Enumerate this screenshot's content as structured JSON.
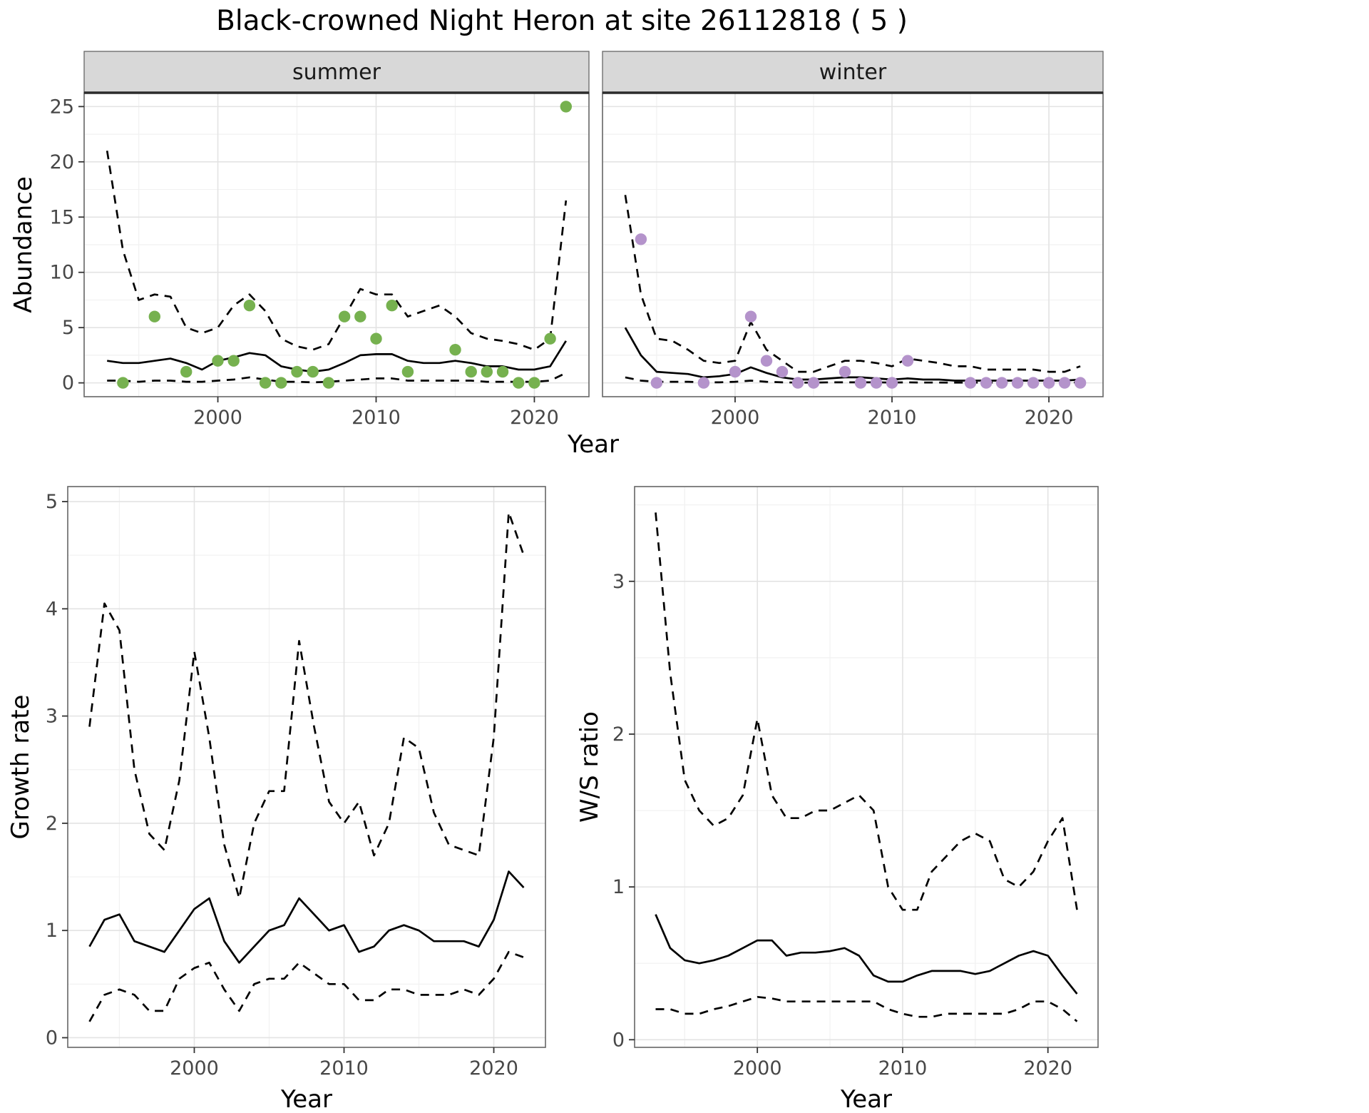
{
  "title": "Black-crowned Night Heron at site 26112818 ( 5 )",
  "colors": {
    "background": "#ffffff",
    "line": "#000000",
    "summer_point": "#76b14f",
    "winter_point": "#b493cb",
    "strip_bg": "#d8d8d8",
    "strip_border": "#2b2b2b",
    "panel_border": "#666666",
    "grid_major": "#e3e3e3",
    "grid_minor": "#f1f1f1",
    "axis_text": "#474747",
    "title_text": "#000000"
  },
  "chart_data": [
    {
      "id": "abundance",
      "type": "line",
      "title": "",
      "xlabel": "Year",
      "ylabel": "Abundance",
      "xlim": [
        1991.55,
        2023.45
      ],
      "ylim": [
        -1.25,
        26.25
      ],
      "x_ticks": [
        2000,
        2010,
        2020
      ],
      "x_tick_labels": [
        "2000",
        "2010",
        "2020"
      ],
      "x_minor": [
        1995,
        2005,
        2015
      ],
      "y_ticks": [
        0,
        5,
        10,
        15,
        20,
        25
      ],
      "y_tick_labels": [
        "0",
        "5",
        "10",
        "15",
        "20",
        "25"
      ],
      "y_minor": [
        2.5,
        7.5,
        12.5,
        17.5,
        22.5
      ],
      "fit_years": [
        1993,
        1994,
        1995,
        1996,
        1997,
        1998,
        1999,
        2000,
        2001,
        2002,
        2003,
        2004,
        2005,
        2006,
        2007,
        2008,
        2009,
        2010,
        2011,
        2012,
        2013,
        2014,
        2015,
        2016,
        2017,
        2018,
        2019,
        2020,
        2021,
        2022
      ],
      "facets": [
        {
          "label": "summer",
          "point_color": "summer_point",
          "median": [
            2.0,
            1.8,
            1.8,
            2.0,
            2.2,
            1.8,
            1.2,
            2.0,
            2.3,
            2.7,
            2.5,
            1.5,
            1.2,
            1.0,
            1.2,
            1.8,
            2.5,
            2.6,
            2.6,
            2.0,
            1.8,
            1.8,
            2.0,
            1.8,
            1.5,
            1.5,
            1.2,
            1.2,
            1.5,
            3.8
          ],
          "upper": [
            21,
            12,
            7.5,
            8,
            7.8,
            5,
            4.5,
            5,
            7,
            8,
            6.5,
            4,
            3.3,
            3,
            3.5,
            6,
            8.5,
            8,
            8,
            6,
            6.5,
            7,
            6,
            4.5,
            4,
            3.8,
            3.5,
            3,
            4,
            16.5
          ],
          "lower": [
            0.2,
            0.2,
            0.1,
            0.2,
            0.2,
            0.1,
            0.1,
            0.2,
            0.3,
            0.5,
            0.3,
            0.1,
            0.1,
            0.05,
            0.1,
            0.2,
            0.3,
            0.4,
            0.4,
            0.2,
            0.2,
            0.2,
            0.2,
            0.2,
            0.1,
            0.1,
            0.1,
            0.1,
            0.2,
            0.9
          ],
          "obs_years": [
            1994,
            1996,
            1998,
            2000,
            2001,
            2002,
            2003,
            2004,
            2005,
            2006,
            2007,
            2008,
            2009,
            2010,
            2011,
            2012,
            2015,
            2016,
            2017,
            2018,
            2019,
            2020,
            2021,
            2022
          ],
          "obs_values": [
            0,
            6,
            1,
            2,
            2,
            7,
            0,
            0,
            1,
            1,
            0,
            6,
            6,
            4,
            7,
            1,
            3,
            1,
            1,
            1,
            0,
            0,
            4,
            25
          ]
        },
        {
          "label": "winter",
          "point_color": "winter_point",
          "median": [
            5.0,
            2.5,
            1.0,
            0.9,
            0.8,
            0.5,
            0.6,
            0.8,
            1.4,
            0.9,
            0.5,
            0.3,
            0.3,
            0.4,
            0.5,
            0.5,
            0.4,
            0.3,
            0.4,
            0.3,
            0.3,
            0.2,
            0.2,
            0.2,
            0.2,
            0.2,
            0.2,
            0.2,
            0.2,
            0.3
          ],
          "upper": [
            17,
            8,
            4,
            3.8,
            3,
            2,
            1.8,
            2,
            5.5,
            3,
            2,
            1,
            1,
            1.5,
            2,
            2,
            1.8,
            1.5,
            2.2,
            2,
            1.8,
            1.5,
            1.5,
            1.2,
            1.2,
            1.2,
            1.2,
            1,
            1,
            1.5
          ],
          "lower": [
            0.5,
            0.2,
            0.1,
            0.1,
            0.1,
            0.05,
            0.05,
            0.1,
            0.2,
            0.1,
            0.05,
            0.02,
            0.02,
            0.05,
            0.05,
            0.05,
            0.05,
            0.03,
            0.05,
            0.03,
            0.03,
            0.02,
            0.02,
            0.02,
            0.02,
            0.02,
            0.02,
            0.02,
            0.02,
            0.05
          ],
          "obs_years": [
            1994,
            1995,
            1998,
            2000,
            2001,
            2002,
            2003,
            2004,
            2005,
            2007,
            2008,
            2009,
            2010,
            2011,
            2015,
            2016,
            2017,
            2018,
            2019,
            2020,
            2021,
            2022
          ],
          "obs_values": [
            13,
            0,
            0,
            1,
            6,
            2,
            1,
            0,
            0,
            1,
            0,
            0,
            0,
            2,
            0,
            0,
            0,
            0,
            0,
            0,
            0,
            0
          ]
        }
      ]
    },
    {
      "id": "growth_rate",
      "type": "line",
      "title": "",
      "xlabel": "Year",
      "ylabel": "Growth rate",
      "xlim": [
        1991.55,
        2023.45
      ],
      "ylim": [
        -0.09,
        5.14
      ],
      "x_ticks": [
        2000,
        2010,
        2020
      ],
      "x_tick_labels": [
        "2000",
        "2010",
        "2020"
      ],
      "x_minor": [
        1995,
        2005,
        2015
      ],
      "y_ticks": [
        0,
        1,
        2,
        3,
        4,
        5
      ],
      "y_tick_labels": [
        "0",
        "1",
        "2",
        "3",
        "4",
        "5"
      ],
      "y_minor": [
        0.5,
        1.5,
        2.5,
        3.5,
        4.5
      ],
      "fit_years": [
        1993,
        1994,
        1995,
        1996,
        1997,
        1998,
        1999,
        2000,
        2001,
        2002,
        2003,
        2004,
        2005,
        2006,
        2007,
        2008,
        2009,
        2010,
        2011,
        2012,
        2013,
        2014,
        2015,
        2016,
        2017,
        2018,
        2019,
        2020,
        2021,
        2022
      ],
      "median": [
        0.85,
        1.1,
        1.15,
        0.9,
        0.85,
        0.8,
        1.0,
        1.2,
        1.3,
        0.9,
        0.7,
        0.85,
        1.0,
        1.05,
        1.3,
        1.15,
        1.0,
        1.05,
        0.8,
        0.85,
        1.0,
        1.05,
        1.0,
        0.9,
        0.9,
        0.9,
        0.85,
        1.1,
        1.55,
        1.4
      ],
      "upper": [
        2.9,
        4.05,
        3.8,
        2.5,
        1.9,
        1.75,
        2.4,
        3.6,
        2.8,
        1.8,
        1.3,
        2.0,
        2.3,
        2.3,
        3.7,
        2.9,
        2.2,
        2.0,
        2.2,
        1.7,
        2.0,
        2.8,
        2.7,
        2.1,
        1.8,
        1.75,
        1.7,
        2.8,
        4.9,
        4.5
      ],
      "lower": [
        0.15,
        0.4,
        0.45,
        0.4,
        0.25,
        0.25,
        0.55,
        0.65,
        0.7,
        0.45,
        0.25,
        0.5,
        0.55,
        0.55,
        0.7,
        0.6,
        0.5,
        0.5,
        0.35,
        0.35,
        0.45,
        0.45,
        0.4,
        0.4,
        0.4,
        0.45,
        0.4,
        0.55,
        0.8,
        0.75
      ]
    },
    {
      "id": "ws_ratio",
      "type": "line",
      "title": "",
      "xlabel": "Year",
      "ylabel": "W/S ratio",
      "xlim": [
        1991.55,
        2023.45
      ],
      "ylim": [
        -0.05,
        3.62
      ],
      "x_ticks": [
        2000,
        2010,
        2020
      ],
      "x_tick_labels": [
        "2000",
        "2010",
        "2020"
      ],
      "x_minor": [
        1995,
        2005,
        2015
      ],
      "y_ticks": [
        0,
        1,
        2,
        3
      ],
      "y_tick_labels": [
        "0",
        "1",
        "2",
        "3"
      ],
      "y_minor": [
        0.5,
        1.5,
        2.5,
        3.5
      ],
      "fit_years": [
        1993,
        1994,
        1995,
        1996,
        1997,
        1998,
        1999,
        2000,
        2001,
        2002,
        2003,
        2004,
        2005,
        2006,
        2007,
        2008,
        2009,
        2010,
        2011,
        2012,
        2013,
        2014,
        2015,
        2016,
        2017,
        2018,
        2019,
        2020,
        2021,
        2022
      ],
      "median": [
        0.82,
        0.6,
        0.52,
        0.5,
        0.52,
        0.55,
        0.6,
        0.65,
        0.65,
        0.55,
        0.57,
        0.57,
        0.58,
        0.6,
        0.55,
        0.42,
        0.38,
        0.38,
        0.42,
        0.45,
        0.45,
        0.45,
        0.43,
        0.45,
        0.5,
        0.55,
        0.58,
        0.55,
        0.42,
        0.3
      ],
      "upper": [
        3.45,
        2.4,
        1.7,
        1.5,
        1.4,
        1.45,
        1.6,
        2.1,
        1.6,
        1.45,
        1.45,
        1.5,
        1.5,
        1.55,
        1.6,
        1.5,
        1.0,
        0.85,
        0.85,
        1.1,
        1.2,
        1.3,
        1.35,
        1.3,
        1.05,
        1.0,
        1.1,
        1.3,
        1.45,
        0.85
      ],
      "lower": [
        0.2,
        0.2,
        0.17,
        0.17,
        0.2,
        0.22,
        0.25,
        0.28,
        0.27,
        0.25,
        0.25,
        0.25,
        0.25,
        0.25,
        0.25,
        0.25,
        0.2,
        0.17,
        0.15,
        0.15,
        0.17,
        0.17,
        0.17,
        0.17,
        0.17,
        0.2,
        0.25,
        0.25,
        0.2,
        0.12
      ]
    }
  ]
}
